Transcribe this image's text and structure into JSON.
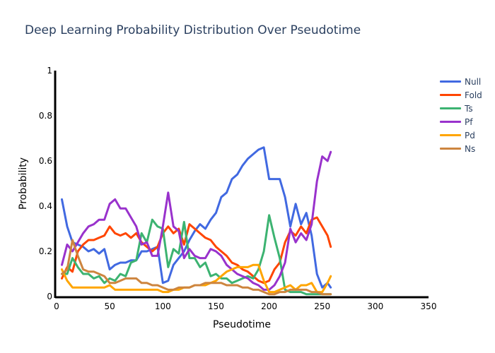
{
  "chart_data": {
    "type": "line",
    "title": "Deep Learning Probability Distribution Over Pseudotime",
    "xlabel": "Pseudotime",
    "ylabel": "Probability",
    "xlim": [
      0,
      350
    ],
    "ylim": [
      0,
      1
    ],
    "xticks": [
      0,
      50,
      100,
      150,
      200,
      250,
      300,
      350
    ],
    "yticks": [
      0,
      0.2,
      0.4,
      0.6,
      0.8,
      1
    ],
    "ytick_labels": [
      "0",
      "0.2",
      "0.4",
      "0.6",
      "0.8",
      "1"
    ],
    "grid": false,
    "legend_position": "top-right",
    "series": [
      {
        "name": "Null",
        "color": "#4169e1",
        "x": [
          5,
          10,
          15,
          20,
          25,
          30,
          35,
          40,
          45,
          50,
          55,
          60,
          65,
          70,
          75,
          80,
          85,
          90,
          95,
          100,
          105,
          110,
          115,
          120,
          125,
          130,
          135,
          140,
          145,
          150,
          155,
          160,
          165,
          170,
          175,
          180,
          185,
          190,
          195,
          200,
          205,
          210,
          215,
          220,
          225,
          230,
          235,
          240,
          245,
          250,
          255,
          258
        ],
        "y": [
          0.43,
          0.31,
          0.24,
          0.23,
          0.22,
          0.2,
          0.21,
          0.19,
          0.21,
          0.12,
          0.14,
          0.15,
          0.15,
          0.16,
          0.16,
          0.2,
          0.2,
          0.21,
          0.22,
          0.06,
          0.07,
          0.14,
          0.17,
          0.2,
          0.25,
          0.29,
          0.32,
          0.3,
          0.34,
          0.37,
          0.44,
          0.46,
          0.52,
          0.54,
          0.58,
          0.61,
          0.63,
          0.65,
          0.66,
          0.52,
          0.52,
          0.52,
          0.44,
          0.31,
          0.41,
          0.32,
          0.37,
          0.27,
          0.1,
          0.04,
          0.06,
          0.04
        ]
      },
      {
        "name": "Fold",
        "color": "#ff4500",
        "x": [
          5,
          10,
          15,
          20,
          25,
          30,
          35,
          40,
          45,
          50,
          55,
          60,
          65,
          70,
          75,
          80,
          85,
          90,
          95,
          100,
          105,
          110,
          115,
          120,
          125,
          130,
          135,
          140,
          145,
          150,
          155,
          160,
          165,
          170,
          175,
          180,
          185,
          190,
          195,
          200,
          205,
          210,
          215,
          220,
          225,
          230,
          235,
          240,
          245,
          250,
          255,
          258
        ],
        "y": [
          0.08,
          0.13,
          0.11,
          0.2,
          0.23,
          0.25,
          0.25,
          0.26,
          0.27,
          0.31,
          0.28,
          0.27,
          0.28,
          0.26,
          0.28,
          0.24,
          0.22,
          0.2,
          0.22,
          0.28,
          0.31,
          0.28,
          0.3,
          0.23,
          0.32,
          0.3,
          0.28,
          0.26,
          0.25,
          0.22,
          0.2,
          0.18,
          0.15,
          0.14,
          0.12,
          0.11,
          0.09,
          0.07,
          0.06,
          0.07,
          0.12,
          0.15,
          0.24,
          0.29,
          0.27,
          0.31,
          0.28,
          0.34,
          0.35,
          0.31,
          0.27,
          0.22
        ]
      },
      {
        "name": "Ts",
        "color": "#3cb371",
        "x": [
          5,
          10,
          15,
          20,
          25,
          30,
          35,
          40,
          45,
          50,
          55,
          60,
          65,
          70,
          75,
          80,
          85,
          90,
          95,
          100,
          105,
          110,
          115,
          120,
          125,
          130,
          135,
          140,
          145,
          150,
          155,
          160,
          165,
          170,
          175,
          180,
          185,
          190,
          195,
          200,
          205,
          210,
          215,
          220,
          225,
          230,
          235,
          240,
          245,
          250,
          255,
          258
        ],
        "y": [
          0.1,
          0.1,
          0.17,
          0.13,
          0.1,
          0.1,
          0.08,
          0.09,
          0.06,
          0.08,
          0.07,
          0.1,
          0.09,
          0.15,
          0.16,
          0.28,
          0.24,
          0.34,
          0.31,
          0.3,
          0.13,
          0.21,
          0.19,
          0.33,
          0.17,
          0.17,
          0.13,
          0.15,
          0.09,
          0.1,
          0.08,
          0.08,
          0.06,
          0.07,
          0.08,
          0.09,
          0.08,
          0.12,
          0.2,
          0.36,
          0.26,
          0.17,
          0.03,
          0.02,
          0.02,
          0.02,
          0.01,
          0.01,
          0.01,
          0.01,
          0.01,
          0.01
        ]
      },
      {
        "name": "Pf",
        "color": "#9932cc",
        "x": [
          5,
          10,
          15,
          20,
          25,
          30,
          35,
          40,
          45,
          50,
          55,
          60,
          65,
          70,
          75,
          80,
          85,
          90,
          95,
          100,
          105,
          110,
          115,
          120,
          125,
          130,
          135,
          140,
          145,
          150,
          155,
          160,
          165,
          170,
          175,
          180,
          185,
          190,
          195,
          200,
          205,
          210,
          215,
          220,
          225,
          230,
          235,
          240,
          245,
          250,
          255,
          258
        ],
        "y": [
          0.14,
          0.23,
          0.2,
          0.24,
          0.28,
          0.31,
          0.32,
          0.34,
          0.34,
          0.41,
          0.43,
          0.39,
          0.39,
          0.35,
          0.31,
          0.23,
          0.24,
          0.18,
          0.18,
          0.31,
          0.46,
          0.31,
          0.29,
          0.17,
          0.21,
          0.18,
          0.17,
          0.17,
          0.21,
          0.2,
          0.18,
          0.14,
          0.12,
          0.1,
          0.09,
          0.08,
          0.06,
          0.05,
          0.03,
          0.03,
          0.05,
          0.09,
          0.15,
          0.3,
          0.24,
          0.28,
          0.25,
          0.32,
          0.51,
          0.62,
          0.6,
          0.64
        ]
      },
      {
        "name": "Pd",
        "color": "#ffa500",
        "x": [
          5,
          10,
          15,
          20,
          25,
          30,
          35,
          40,
          45,
          50,
          55,
          60,
          65,
          70,
          75,
          80,
          85,
          90,
          95,
          100,
          105,
          110,
          115,
          120,
          125,
          130,
          135,
          140,
          145,
          150,
          155,
          160,
          165,
          170,
          175,
          180,
          185,
          190,
          195,
          200,
          205,
          210,
          215,
          220,
          225,
          230,
          235,
          240,
          245,
          250,
          255,
          258
        ],
        "y": [
          0.12,
          0.07,
          0.04,
          0.04,
          0.04,
          0.04,
          0.04,
          0.04,
          0.04,
          0.05,
          0.03,
          0.03,
          0.03,
          0.03,
          0.03,
          0.03,
          0.03,
          0.03,
          0.03,
          0.02,
          0.02,
          0.03,
          0.03,
          0.04,
          0.04,
          0.05,
          0.05,
          0.05,
          0.06,
          0.07,
          0.09,
          0.11,
          0.12,
          0.13,
          0.13,
          0.13,
          0.14,
          0.14,
          0.07,
          0.02,
          0.02,
          0.03,
          0.04,
          0.05,
          0.03,
          0.05,
          0.05,
          0.06,
          0.02,
          0.02,
          0.06,
          0.09
        ]
      },
      {
        "name": "Ns",
        "color": "#cd853f",
        "x": [
          5,
          10,
          15,
          20,
          25,
          30,
          35,
          40,
          45,
          50,
          55,
          60,
          65,
          70,
          75,
          80,
          85,
          90,
          95,
          100,
          105,
          110,
          115,
          120,
          125,
          130,
          135,
          140,
          145,
          150,
          155,
          160,
          165,
          170,
          175,
          180,
          185,
          190,
          195,
          200,
          205,
          210,
          215,
          220,
          225,
          230,
          235,
          240,
          245,
          250,
          255,
          258
        ],
        "y": [
          0.1,
          0.12,
          0.25,
          0.18,
          0.12,
          0.11,
          0.11,
          0.1,
          0.09,
          0.06,
          0.06,
          0.07,
          0.08,
          0.08,
          0.08,
          0.06,
          0.06,
          0.05,
          0.05,
          0.04,
          0.03,
          0.03,
          0.04,
          0.04,
          0.04,
          0.05,
          0.05,
          0.06,
          0.06,
          0.06,
          0.06,
          0.05,
          0.05,
          0.05,
          0.04,
          0.04,
          0.03,
          0.03,
          0.02,
          0.01,
          0.01,
          0.02,
          0.02,
          0.03,
          0.03,
          0.03,
          0.03,
          0.02,
          0.02,
          0.01,
          0.01,
          0.01
        ]
      }
    ]
  }
}
